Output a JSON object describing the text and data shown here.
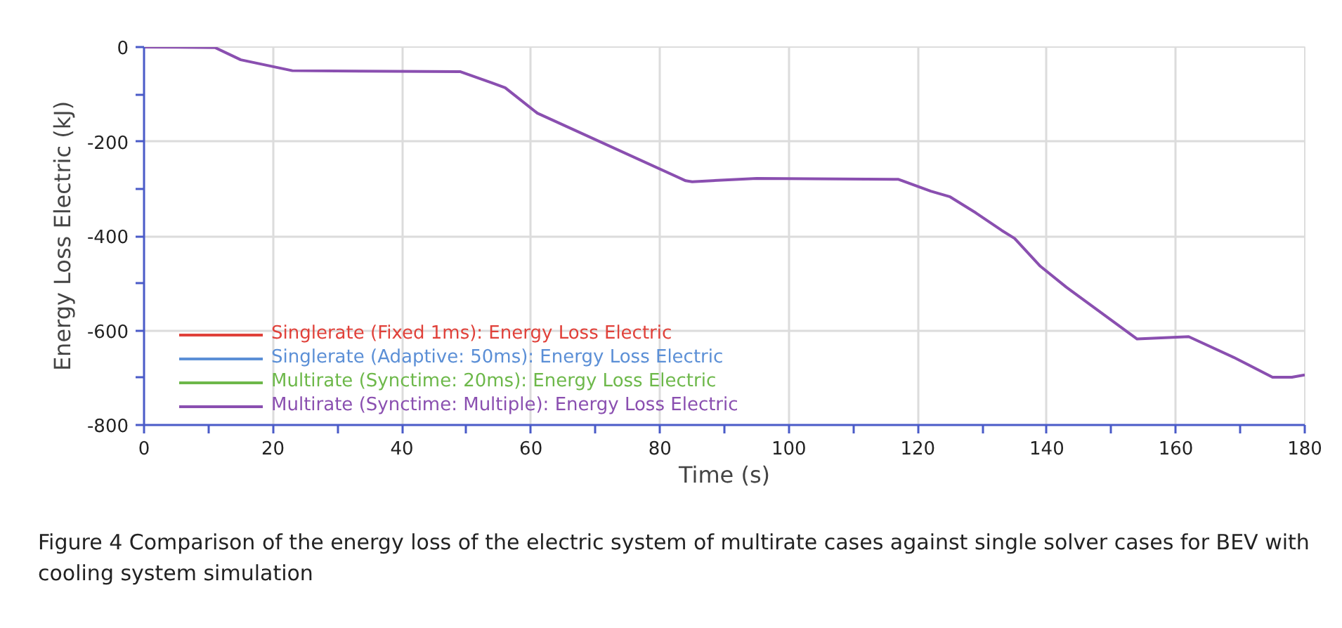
{
  "chart_data": {
    "type": "line",
    "xlabel": "Time (s)",
    "ylabel": "Energy Loss Electric (kJ)",
    "x": [
      0,
      11,
      15,
      23,
      49,
      54,
      56,
      61,
      84,
      85,
      95,
      117,
      122,
      125,
      129,
      133,
      135,
      139,
      143,
      154,
      162,
      169,
      175,
      178,
      180
    ],
    "series": [
      {
        "name": "Singlerate (Fixed 1ms): Energy Loss Electric",
        "color": "#e0413a",
        "values": [
          null,
          null,
          null,
          null,
          null,
          null,
          null,
          null,
          null,
          null,
          null,
          null,
          null,
          null,
          null,
          null,
          null,
          null,
          null,
          null,
          null,
          null,
          null,
          null,
          null
        ]
      },
      {
        "name": "Singlerate (Adaptive: 50ms): Energy Loss Electric",
        "color": "#5b8fd6",
        "values": [
          null,
          null,
          null,
          null,
          null,
          null,
          null,
          null,
          null,
          null,
          null,
          null,
          null,
          null,
          null,
          null,
          null,
          null,
          null,
          null,
          null,
          null,
          null,
          null,
          null
        ]
      },
      {
        "name": "Multirate (Synctime: 20ms): Energy Loss Electric",
        "color": "#6db84a",
        "values": [
          null,
          null,
          null,
          null,
          null,
          null,
          null,
          null,
          null,
          null,
          null,
          null,
          null,
          null,
          null,
          null,
          null,
          null,
          null,
          null,
          null,
          null,
          null,
          null,
          null
        ]
      },
      {
        "name": "Multirate (Synctime: Multiple): Energy Loss Electric",
        "color": "#8a4fb0",
        "values": [
          0,
          -1,
          -27,
          -50,
          -52,
          -76,
          -86,
          -140,
          -283,
          -285,
          -278,
          -280,
          -305,
          -317,
          -351,
          -388,
          -405,
          -464,
          -508,
          -618,
          -613,
          -657,
          -699,
          -699,
          -694
        ]
      }
    ],
    "xlim": [
      0,
      180
    ],
    "ylim": [
      -800,
      0
    ],
    "xticks": [
      0,
      {
        "value": 10,
        "label": null
      },
      20,
      {
        "value": 30,
        "label": null
      },
      40,
      {
        "value": 50,
        "label": null
      },
      60,
      {
        "value": 70,
        "label": null
      },
      80,
      {
        "value": 90,
        "label": null
      },
      100,
      {
        "value": 110,
        "label": null
      },
      120,
      {
        "value": 130,
        "label": null
      },
      140,
      {
        "value": 150,
        "label": null
      },
      160,
      {
        "value": 170,
        "label": null
      },
      180
    ],
    "yticks": [
      -800,
      {
        "value": -700,
        "label": null
      },
      -600,
      {
        "value": -500,
        "label": null
      },
      -400,
      {
        "value": -300,
        "label": null
      },
      -200,
      {
        "value": -100,
        "label": null
      },
      0
    ],
    "grid": true,
    "legend": "bottom left",
    "line_style": "solid",
    "annotations": [
      "Figure 4  Comparison of the energy loss of the electric system of multirate cases against single solver cases for BEV with cooling system simulation"
    ]
  }
}
